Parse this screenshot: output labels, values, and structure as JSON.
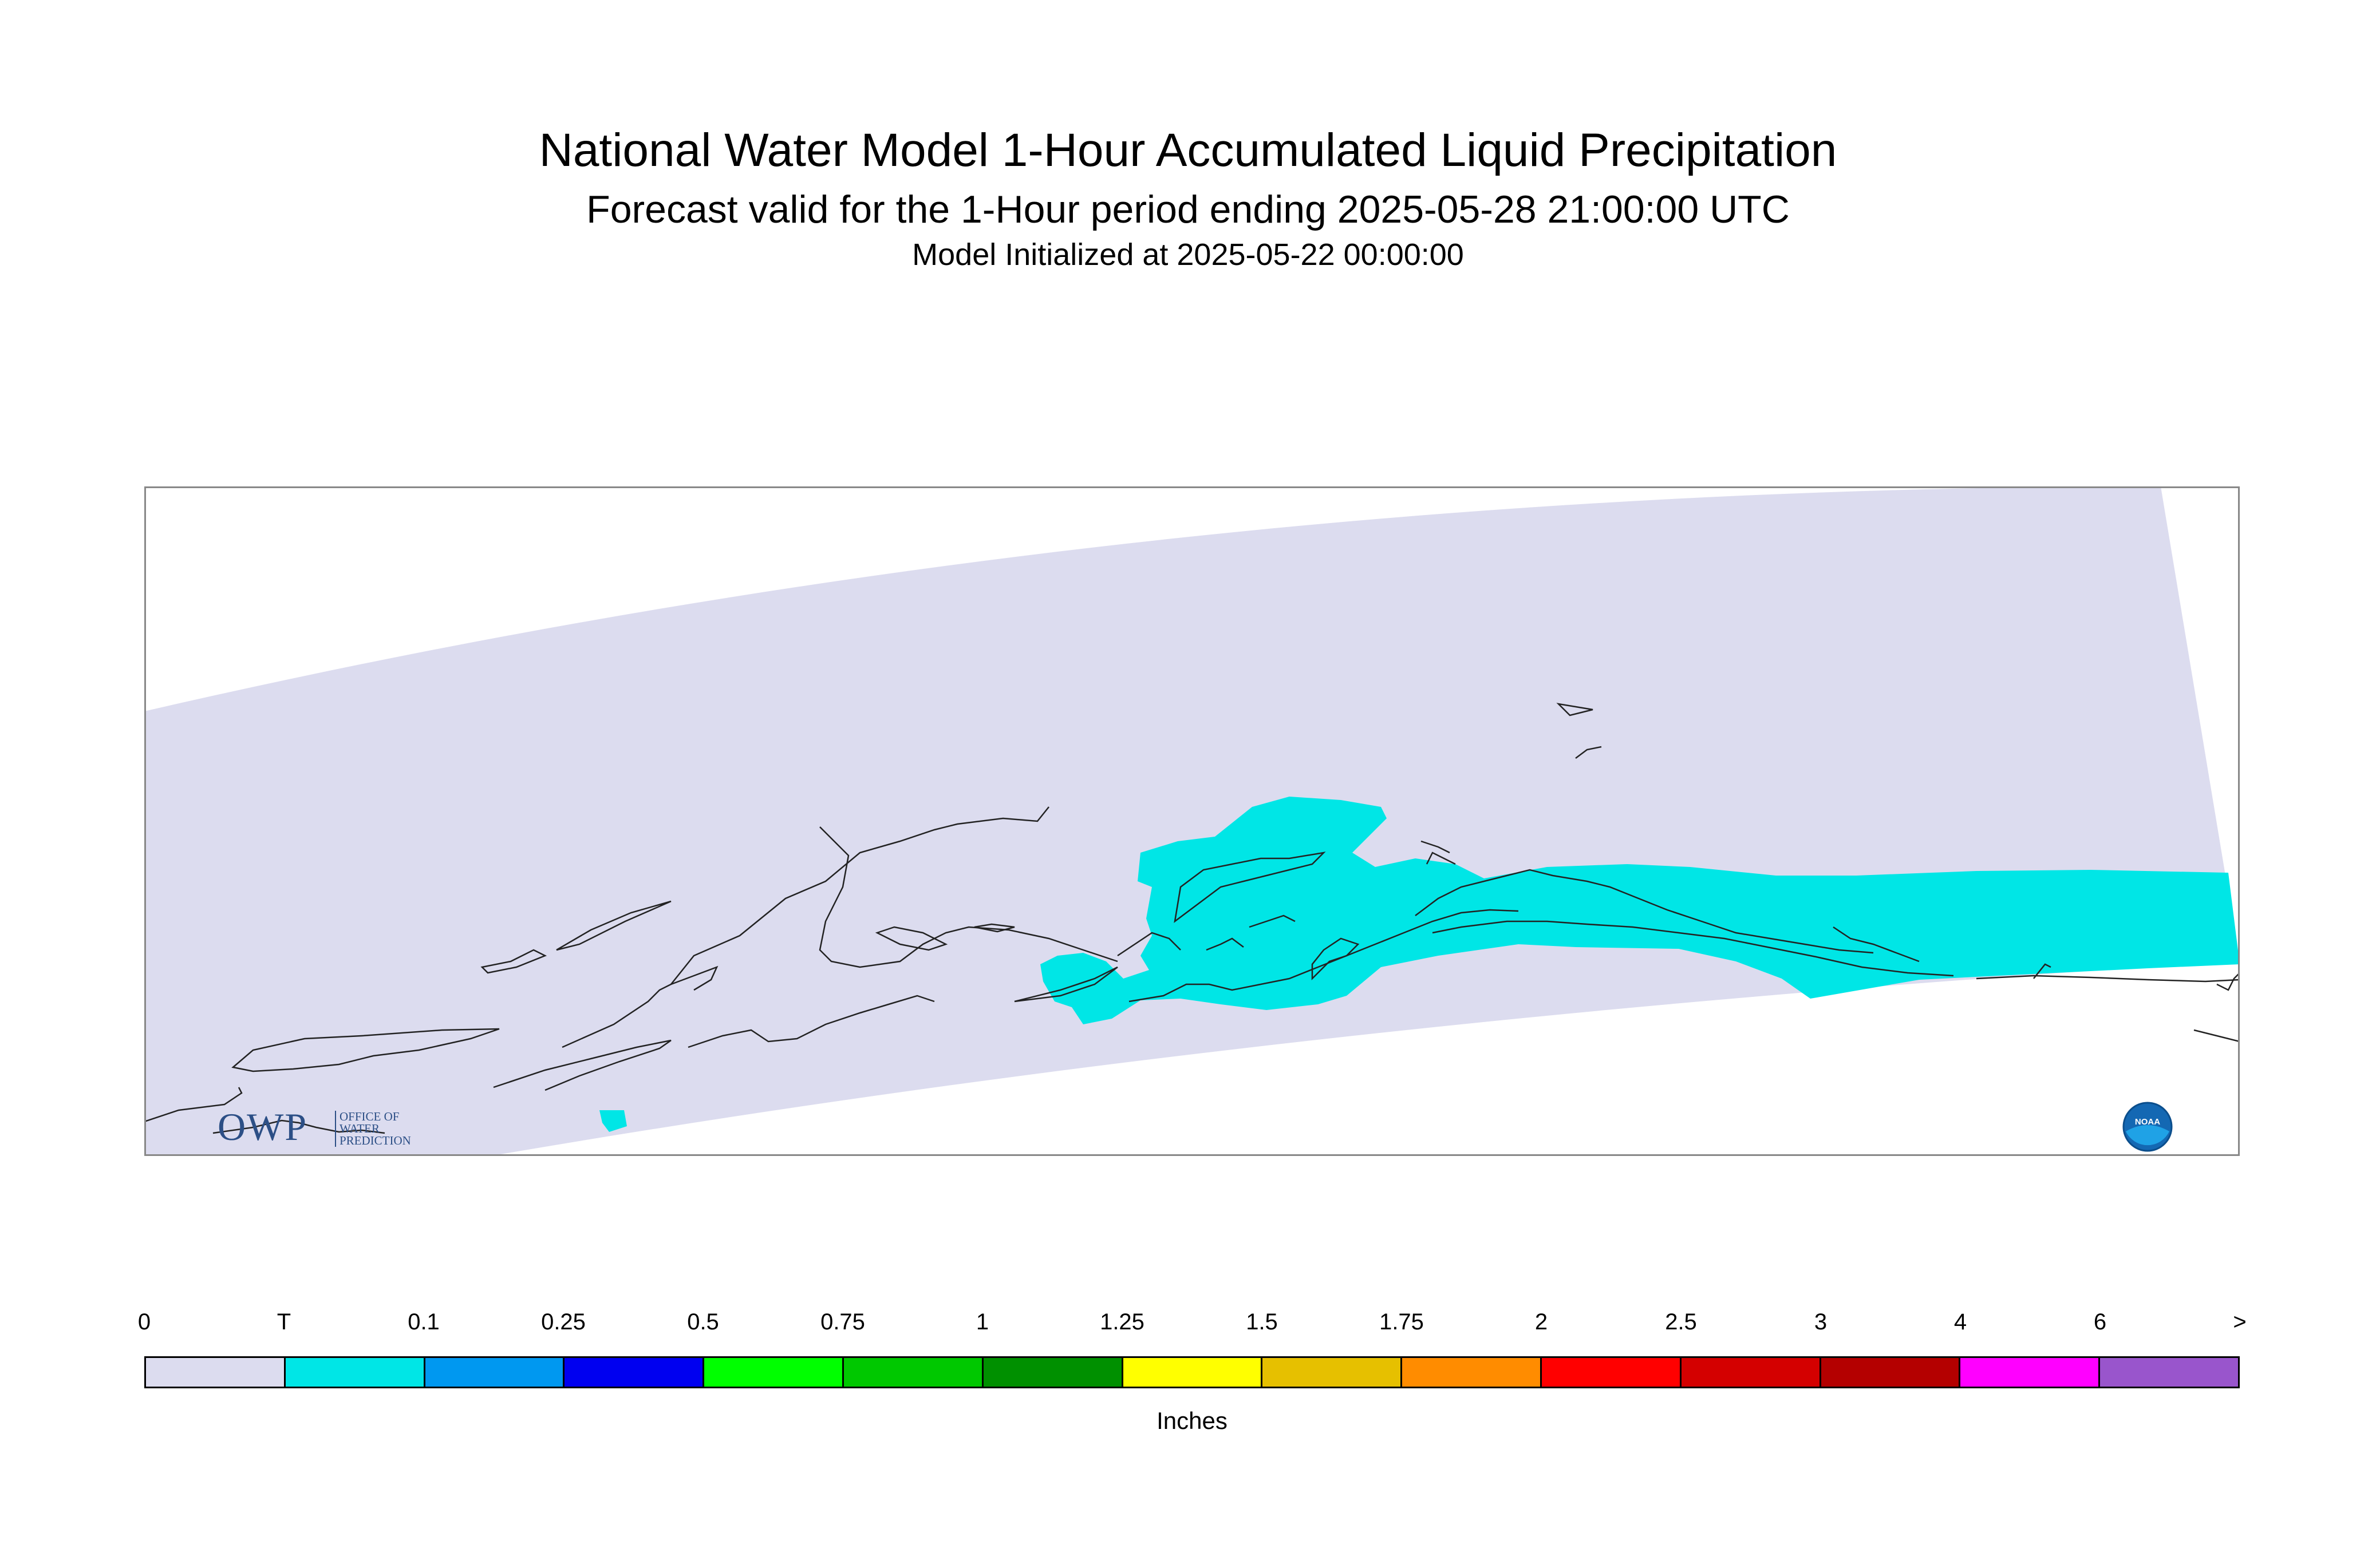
{
  "title": "National Water Model 1-Hour Accumulated Liquid Precipitation",
  "subtitle": "Forecast valid for the 1-Hour period ending 2025-05-28 21:00:00 UTC",
  "init_line": "Model Initialized at 2025-05-22 00:00:00",
  "map": {
    "domain_color": "#dcdcef",
    "precip_color": "#00e6e6",
    "coastline_color": "#222222"
  },
  "logos": {
    "owp_mark": "OWP",
    "owp_sub": [
      "OFFICE OF",
      "WATER",
      "PREDICTION"
    ],
    "noaa_text": "NOAA"
  },
  "legend": {
    "tick_labels": [
      "0",
      "T",
      "0.1",
      "0.25",
      "0.5",
      "0.75",
      "1",
      "1.25",
      "1.5",
      "1.75",
      "2",
      "2.5",
      "3",
      "4",
      "6",
      ">"
    ],
    "colors": [
      "#dcdcef",
      "#00e6e6",
      "#0098f0",
      "#0000f0",
      "#00ff00",
      "#00c800",
      "#009000",
      "#ffff00",
      "#e6c000",
      "#ff8c00",
      "#ff0000",
      "#d40000",
      "#b40000",
      "#ff00ff",
      "#9955cc"
    ],
    "units": "Inches"
  }
}
